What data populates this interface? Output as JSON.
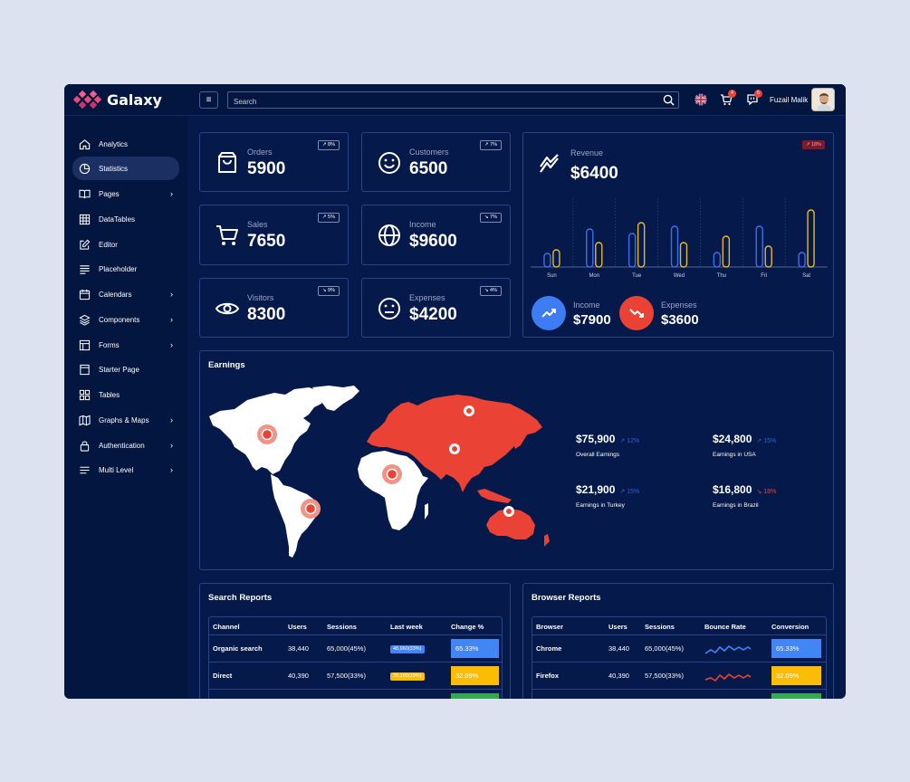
{
  "app": {
    "name": "Galaxy"
  },
  "search": {
    "placeholder": "Search"
  },
  "topbar": {
    "cart_count": "4",
    "chat_count": "5",
    "user_name": "Fuzail Malik"
  },
  "sidebar": {
    "items": [
      {
        "label": "Analytics",
        "icon": "home-icon",
        "chevron": false,
        "active": false
      },
      {
        "label": "Statistics",
        "icon": "pie-chart-icon",
        "chevron": false,
        "active": true
      },
      {
        "label": "Pages",
        "icon": "book-icon",
        "chevron": true,
        "active": false
      },
      {
        "label": "DataTables",
        "icon": "grid-icon",
        "chevron": false,
        "active": false
      },
      {
        "label": "Editor",
        "icon": "edit-icon",
        "chevron": false,
        "active": false
      },
      {
        "label": "Placeholder",
        "icon": "align-left-icon",
        "chevron": false,
        "active": false
      },
      {
        "label": "Calendars",
        "icon": "calendar-icon",
        "chevron": true,
        "active": false
      },
      {
        "label": "Components",
        "icon": "layers-icon",
        "chevron": true,
        "active": false
      },
      {
        "label": "Forms",
        "icon": "layout-icon",
        "chevron": true,
        "active": false
      },
      {
        "label": "Starter Page",
        "icon": "file-icon",
        "chevron": false,
        "active": false
      },
      {
        "label": "Tables",
        "icon": "table-icon",
        "chevron": false,
        "active": false
      },
      {
        "label": "Graphs & Maps",
        "icon": "map-icon",
        "chevron": true,
        "active": false
      },
      {
        "label": "Authentication",
        "icon": "lock-icon",
        "chevron": true,
        "active": false
      },
      {
        "label": "Multi Level",
        "icon": "menu-icon",
        "chevron": true,
        "active": false
      }
    ]
  },
  "stats": [
    {
      "label": "Orders",
      "value": "5900",
      "trend": "8%",
      "direction": "up",
      "icon": "shopping-bag-icon"
    },
    {
      "label": "Customers",
      "value": "6500",
      "trend": "7%",
      "direction": "up",
      "icon": "smile-icon"
    },
    {
      "label": "Sales",
      "value": "7650",
      "trend": "5%",
      "direction": "up",
      "icon": "cart-icon"
    },
    {
      "label": "Income",
      "value": "$9600",
      "trend": "7%",
      "direction": "down",
      "icon": "globe-icon"
    },
    {
      "label": "Visitors",
      "value": "8300",
      "trend": "9%",
      "direction": "down",
      "icon": "eye-icon"
    },
    {
      "label": "Expenses",
      "value": "$4200",
      "trend": "4%",
      "direction": "down",
      "icon": "neutral-face-icon"
    }
  ],
  "revenue": {
    "label": "Revenue",
    "value": "$6400",
    "badge": "18%",
    "income": {
      "label": "Income",
      "value": "$7900"
    },
    "expenses": {
      "label": "Expenses",
      "value": "$3600"
    }
  },
  "chart_data": {
    "type": "bar",
    "categories": [
      "Sun",
      "Mon",
      "Tue",
      "Wed",
      "Thu",
      "Fri",
      "Sat"
    ],
    "series": [
      {
        "values": [
          15,
          42,
          37,
          45,
          16,
          45,
          16
        ],
        "color": "#3d6ef2"
      },
      {
        "values": [
          19,
          27,
          49,
          27,
          34,
          23,
          63
        ],
        "color": "#e9b82a"
      }
    ],
    "ylim": [
      0,
      70
    ],
    "grid": false
  },
  "earnings": {
    "title": "Earnings",
    "items": [
      {
        "amount": "$75,900",
        "pct": "12%",
        "direction": "up",
        "caption": "Overall Earnings"
      },
      {
        "amount": "$24,800",
        "pct": "15%",
        "direction": "up",
        "caption": "Earnings in USA"
      },
      {
        "amount": "$21,900",
        "pct": "15%",
        "direction": "up",
        "caption": "Earnings in Turkey"
      },
      {
        "amount": "$16,800",
        "pct": "18%",
        "direction": "down",
        "caption": "Earnings in Brazil"
      }
    ]
  },
  "search_reports": {
    "title": "Search Reports",
    "columns": [
      "Channel",
      "Users",
      "Sessions",
      "Last week",
      "Change %"
    ],
    "rows": [
      {
        "channel": "Organic search",
        "users": "38,440",
        "sessions": "65,000(45%)",
        "last_week": "48,960(33%)",
        "last_week_color": "#4285f4",
        "change": "65.33%",
        "change_color": "#4285f4"
      },
      {
        "channel": "Direct",
        "users": "40,390",
        "sessions": "57,500(33%)",
        "last_week": "39,260(29%)",
        "last_week_color": "#fbbc05",
        "change": "32.09%",
        "change_color": "#fbbc05"
      }
    ],
    "partial_color": "#34a853"
  },
  "browser_reports": {
    "title": "Browser Reports",
    "columns": [
      "Browser",
      "Users",
      "Sessions",
      "Bounce Rate",
      "Conversion"
    ],
    "rows": [
      {
        "browser": "Chrome",
        "users": "38,440",
        "sessions": "65,000(45%)",
        "spark_color": "#4285f4",
        "conversion": "65.33%",
        "conversion_color": "#4285f4"
      },
      {
        "browser": "Firefox",
        "users": "40,390",
        "sessions": "57,500(33%)",
        "spark_color": "#ea4335",
        "conversion": "32.09%",
        "conversion_color": "#fbbc05"
      }
    ],
    "partial_color": "#34a853"
  }
}
